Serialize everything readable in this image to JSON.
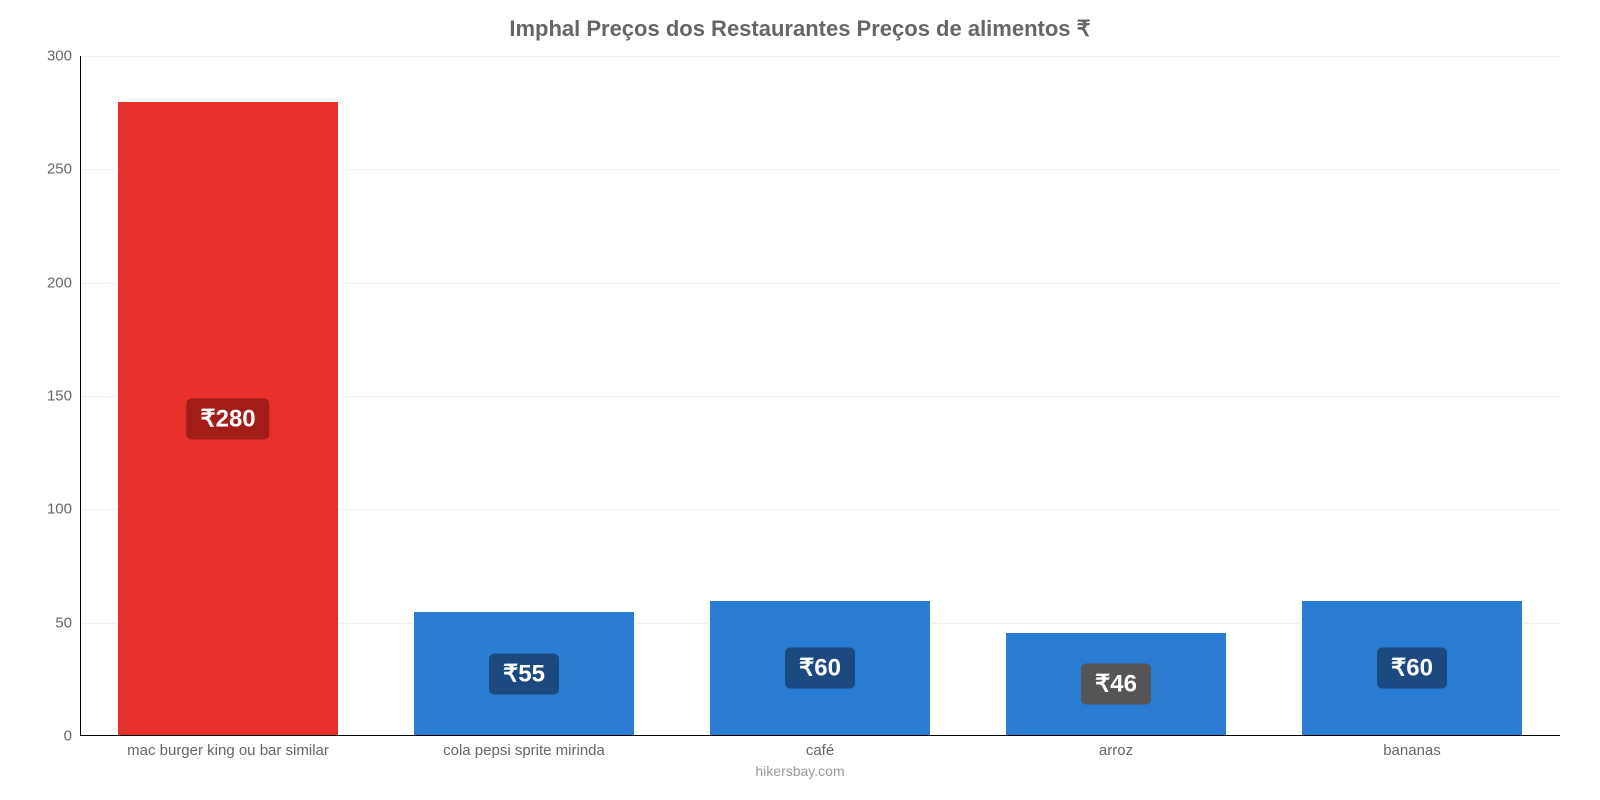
{
  "chart": {
    "type": "bar",
    "title": "Imphal Preços dos Restaurantes Preços de alimentos ₹",
    "title_fontsize": 22,
    "title_color": "#666666",
    "attribution": "hikersbay.com",
    "attribution_color": "#999999",
    "attribution_fontsize": 14,
    "background_color": "#ffffff",
    "grid_color": "#f2f2f2",
    "axis_color": "#000000",
    "label_color": "#666666",
    "tick_fontsize": 15,
    "x_label_fontsize": 15,
    "bar_width_ratio": 0.75,
    "ylim": [
      0,
      300
    ],
    "ytick_step": 50,
    "yticks": [
      0,
      50,
      100,
      150,
      200,
      250,
      300
    ],
    "categories": [
      "mac burger king ou bar similar",
      "cola pepsi sprite mirinda",
      "café",
      "arroz",
      "bananas"
    ],
    "values": [
      280,
      55,
      60,
      46,
      60
    ],
    "value_labels": [
      "₹280",
      "₹55",
      "₹60",
      "₹46",
      "₹60"
    ],
    "bar_colors": [
      "#e7302a",
      "#2b7cd3",
      "#2b7cd3",
      "#2b7cd3",
      "#2b7cd3"
    ],
    "badge_colors": [
      "#a21c18",
      "#1a4a7f",
      "#1a4a7f",
      "#555555",
      "#1a4a7f"
    ],
    "badge_text_color": "#ffffff",
    "badge_fontsize": 24
  }
}
